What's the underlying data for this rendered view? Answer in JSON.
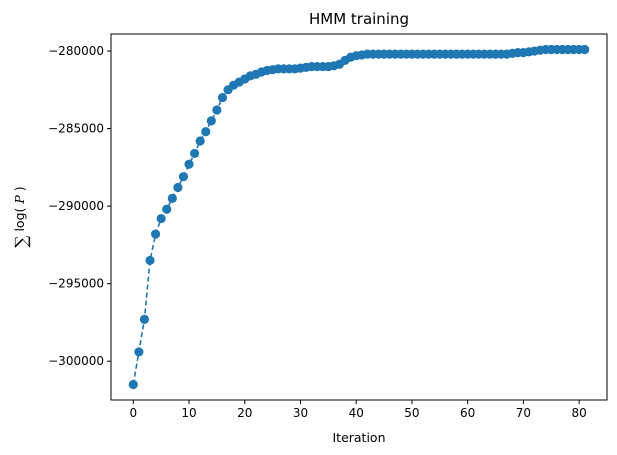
{
  "chart_data": {
    "type": "line",
    "title": "HMM training",
    "xlabel": "Iteration",
    "ylabel": {
      "sum_symbol": "∑",
      "log_text": "log(",
      "var_text": "P",
      "close_text": ")"
    },
    "xlim": [
      -4,
      85
    ],
    "ylim": [
      -302500,
      -278900
    ],
    "xticks": [
      0,
      10,
      20,
      30,
      40,
      50,
      60,
      70,
      80
    ],
    "xtick_labels": [
      "0",
      "10",
      "20",
      "30",
      "40",
      "50",
      "60",
      "70",
      "80"
    ],
    "yticks": [
      -300000,
      -295000,
      -290000,
      -285000,
      -280000
    ],
    "ytick_labels": [
      "−300000",
      "−295000",
      "−290000",
      "−285000",
      "−280000"
    ],
    "line_color": "#1f77b4",
    "line_style": "dashed",
    "marker": "circle",
    "series": [
      {
        "x": [
          0,
          1,
          2,
          3,
          4,
          5,
          6,
          7,
          8,
          9,
          10,
          11,
          12,
          13,
          14,
          15,
          16,
          17,
          18,
          19,
          20,
          21,
          22,
          23,
          24,
          25,
          26,
          27,
          28,
          29,
          30,
          31,
          32,
          33,
          34,
          35,
          36,
          37,
          38,
          39,
          40,
          41,
          42,
          43,
          44,
          45,
          46,
          47,
          48,
          49,
          50,
          51,
          52,
          53,
          54,
          55,
          56,
          57,
          58,
          59,
          60,
          61,
          62,
          63,
          64,
          65,
          66,
          67,
          68,
          69,
          70,
          71,
          72,
          73,
          74,
          75,
          76,
          77,
          78,
          79,
          80,
          81
        ],
        "y": [
          -301500,
          -299400,
          -297300,
          -293500,
          -291800,
          -290800,
          -290200,
          -289500,
          -288800,
          -288100,
          -287300,
          -286600,
          -285800,
          -285200,
          -284500,
          -283800,
          -283000,
          -282500,
          -282200,
          -282000,
          -281800,
          -281600,
          -281500,
          -281350,
          -281250,
          -281200,
          -281150,
          -281150,
          -281150,
          -281150,
          -281100,
          -281050,
          -281000,
          -281000,
          -281000,
          -281000,
          -280950,
          -280850,
          -280600,
          -280400,
          -280300,
          -280250,
          -280200,
          -280200,
          -280200,
          -280200,
          -280200,
          -280200,
          -280200,
          -280200,
          -280200,
          -280200,
          -280200,
          -280200,
          -280200,
          -280200,
          -280200,
          -280200,
          -280200,
          -280200,
          -280200,
          -280200,
          -280200,
          -280200,
          -280200,
          -280200,
          -280200,
          -280200,
          -280150,
          -280100,
          -280100,
          -280050,
          -280000,
          -279950,
          -279900,
          -279900,
          -279900,
          -279900,
          -279900,
          -279900,
          -279900,
          -279900
        ]
      }
    ]
  }
}
